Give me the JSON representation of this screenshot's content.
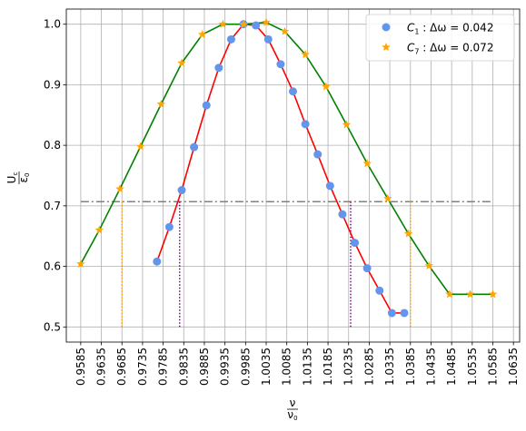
{
  "chart_data": {
    "type": "scatter",
    "xlabel": "ν/ν₀",
    "ylabel": "U_c/ε₀",
    "xlim": [
      0.955,
      1.065
    ],
    "ylim": [
      0.475,
      1.025
    ],
    "grid": true,
    "legend_position": "top-right",
    "x_ticks": [
      0.9585,
      0.9635,
      0.9685,
      0.9735,
      0.9785,
      0.9835,
      0.9885,
      0.9935,
      0.9985,
      1.0035,
      1.0085,
      1.0135,
      1.0185,
      1.0235,
      1.0285,
      1.0335,
      1.0385,
      1.0435,
      1.0485,
      1.0535,
      1.0585,
      1.0635
    ],
    "x_tick_labels": [
      "0.9585",
      "0.9635",
      "0.9685",
      "0.9735",
      "0.9785",
      "0.9835",
      "0.9885",
      "0.9935",
      "0.9985",
      "1.0035",
      "1.0085",
      "1.0135",
      "1.0185",
      "1.0235",
      "1.0285",
      "1.0335",
      "1.0385",
      "1.0435",
      "1.0485",
      "1.0535",
      "1.0585",
      "1.0635"
    ],
    "y_ticks": [
      0.5,
      0.6,
      0.7,
      0.8,
      0.9,
      1.0
    ],
    "y_tick_labels": [
      "0.5",
      "0.6",
      "0.7",
      "0.8",
      "0.9",
      "1.0"
    ],
    "series": [
      {
        "name": "C₁ : Δω = 0.042",
        "legend_parts": [
          "C",
          "1",
          " : Δω = 0.042"
        ],
        "marker": "circle",
        "marker_color": "#6495ed",
        "line_color": "#ff0000",
        "x": [
          0.977,
          0.98,
          0.983,
          0.986,
          0.989,
          0.992,
          0.995,
          0.998,
          1.001,
          1.004,
          1.007,
          1.01,
          1.013,
          1.016,
          1.019,
          1.022,
          1.025,
          1.028,
          1.031,
          1.034,
          1.037
        ],
        "y": [
          0.608,
          0.665,
          0.726,
          0.797,
          0.866,
          0.928,
          0.975,
          1.0,
          0.998,
          0.975,
          0.934,
          0.889,
          0.835,
          0.785,
          0.733,
          0.686,
          0.639,
          0.597,
          0.56,
          0.523,
          0.523
        ]
      },
      {
        "name": "C₇ : Δω = 0.072",
        "legend_parts": [
          "C",
          "7",
          " : Δω = 0.072"
        ],
        "marker": "star",
        "marker_color": "#ffa500",
        "line_color": "#008000",
        "x": [
          0.9585,
          0.963,
          0.968,
          0.973,
          0.978,
          0.983,
          0.988,
          0.993,
          0.998,
          1.0035,
          1.008,
          1.013,
          1.018,
          1.023,
          1.028,
          1.033,
          1.038,
          1.043,
          1.048,
          1.053,
          1.0585
        ],
        "y": [
          0.604,
          0.66,
          0.728,
          0.798,
          0.868,
          0.936,
          0.983,
          1.0,
          1.0,
          1.003,
          0.988,
          0.95,
          0.897,
          0.834,
          0.77,
          0.712,
          0.654,
          0.601,
          0.554,
          0.554,
          0.554
        ]
      }
    ],
    "threshold": {
      "y": 0.707,
      "x_start": 0.9585,
      "x_end": 1.0585,
      "style": "dash-dot",
      "color": "#808080"
    },
    "drop_lines": [
      {
        "x": 0.9685,
        "y_top": 0.707,
        "color": "#ffa500"
      },
      {
        "x": 1.0385,
        "y_top": 0.707,
        "color": "#ffa500"
      },
      {
        "x": 0.9825,
        "y_top": 0.707,
        "color": "#800080"
      },
      {
        "x": 1.024,
        "y_top": 0.707,
        "color": "#800080"
      }
    ]
  }
}
